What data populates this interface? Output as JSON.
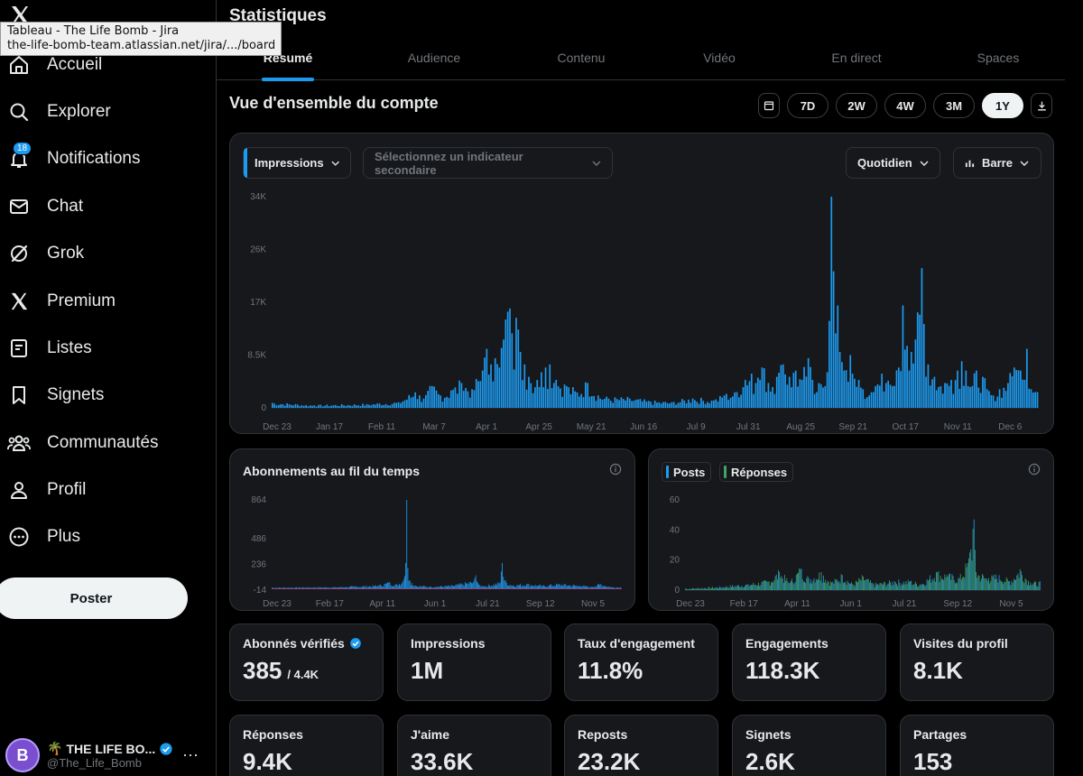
{
  "tooltip": {
    "line1": "Tableau - The Life Bomb - Jira",
    "line2": "the-life-bomb-team.atlassian.net/jira/.../board..."
  },
  "sidebar": {
    "items": [
      {
        "label": "Accueil",
        "icon": "home-icon"
      },
      {
        "label": "Explorer",
        "icon": "search-icon"
      },
      {
        "label": "Notifications",
        "icon": "bell-icon",
        "badge": "18"
      },
      {
        "label": "Chat",
        "icon": "mail-icon"
      },
      {
        "label": "Grok",
        "icon": "grok-icon"
      },
      {
        "label": "Premium",
        "icon": "x-icon"
      },
      {
        "label": "Listes",
        "icon": "list-icon"
      },
      {
        "label": "Signets",
        "icon": "bookmark-icon"
      },
      {
        "label": "Communautés",
        "icon": "people-icon"
      },
      {
        "label": "Profil",
        "icon": "person-icon"
      },
      {
        "label": "Plus",
        "icon": "more-circle-icon"
      }
    ],
    "post_label": "Poster",
    "profile": {
      "emoji": "🌴",
      "name": "THE LIFE BO...",
      "handle": "@The_Life_Bomb",
      "avatar_text": "B"
    }
  },
  "main": {
    "title": "Statistiques",
    "tabs": [
      "Résumé",
      "Audience",
      "Contenu",
      "Vidéo",
      "En direct",
      "Spaces"
    ],
    "active_tab": "Résumé",
    "section_title": "Vue d'ensemble du compte",
    "ranges": [
      "7D",
      "2W",
      "4W",
      "3M",
      "1Y"
    ],
    "selected_range": "1Y",
    "controls": {
      "primary": "Impressions",
      "secondary_placeholder": "Sélectionnez un indicateur secondaire",
      "granularity": "Quotidien",
      "chart_type": "Barre"
    },
    "follows_title": "Abonnements au fil du temps",
    "posts_legend": "Posts",
    "replies_legend": "Réponses"
  },
  "colors": {
    "accent": "#1d9bf0",
    "green": "#3fa36b",
    "red": "#e0245e"
  },
  "stats": [
    {
      "label": "Abonnés vérifiés",
      "value": "385",
      "sub": "/ 4.4K",
      "verified": true
    },
    {
      "label": "Impressions",
      "value": "1M"
    },
    {
      "label": "Taux d'engagement",
      "value": "11.8%"
    },
    {
      "label": "Engagements",
      "value": "118.3K"
    },
    {
      "label": "Visites du profil",
      "value": "8.1K"
    },
    {
      "label": "Réponses",
      "value": "9.4K"
    },
    {
      "label": "J'aime",
      "value": "33.6K"
    },
    {
      "label": "Reposts",
      "value": "23.2K"
    },
    {
      "label": "Signets",
      "value": "2.6K"
    },
    {
      "label": "Partages",
      "value": "153"
    }
  ],
  "chart_data": [
    {
      "type": "bar",
      "name": "impressions",
      "yticks": [
        "34K",
        "26K",
        "17K",
        "8.5K",
        "0"
      ],
      "ytick_values": [
        34000,
        25500,
        17000,
        8500,
        0
      ],
      "xticks": [
        "Dec 23",
        "Jan 17",
        "Feb 11",
        "Mar 7",
        "Apr 1",
        "Apr 25",
        "May 21",
        "Jun 16",
        "Jul 9",
        "Jul 31",
        "Aug 25",
        "Sep 21",
        "Oct 17",
        "Nov 11",
        "Dec 6"
      ],
      "ylim": [
        0,
        34000
      ],
      "peaks": [
        {
          "i": 0,
          "v": 800
        },
        {
          "i": 20,
          "v": 400
        },
        {
          "i": 45,
          "v": 600
        },
        {
          "i": 60,
          "v": 900
        },
        {
          "i": 68,
          "v": 2500
        },
        {
          "i": 72,
          "v": 1500
        },
        {
          "i": 76,
          "v": 3500
        },
        {
          "i": 80,
          "v": 2000
        },
        {
          "i": 85,
          "v": 2800
        },
        {
          "i": 90,
          "v": 4000
        },
        {
          "i": 95,
          "v": 3000
        },
        {
          "i": 100,
          "v": 6000
        },
        {
          "i": 102,
          "v": 9500
        },
        {
          "i": 104,
          "v": 7000
        },
        {
          "i": 106,
          "v": 8000
        },
        {
          "i": 108,
          "v": 6500
        },
        {
          "i": 110,
          "v": 11000
        },
        {
          "i": 112,
          "v": 15500
        },
        {
          "i": 113,
          "v": 16000
        },
        {
          "i": 114,
          "v": 12000
        },
        {
          "i": 116,
          "v": 14500
        },
        {
          "i": 118,
          "v": 9000
        },
        {
          "i": 120,
          "v": 7000
        },
        {
          "i": 122,
          "v": 5000
        },
        {
          "i": 126,
          "v": 4500
        },
        {
          "i": 130,
          "v": 6500
        },
        {
          "i": 132,
          "v": 7000
        },
        {
          "i": 135,
          "v": 4500
        },
        {
          "i": 140,
          "v": 3500
        },
        {
          "i": 145,
          "v": 2500
        },
        {
          "i": 150,
          "v": 4000
        },
        {
          "i": 155,
          "v": 2000
        },
        {
          "i": 160,
          "v": 1500
        },
        {
          "i": 170,
          "v": 1500
        },
        {
          "i": 180,
          "v": 1000
        },
        {
          "i": 190,
          "v": 900
        },
        {
          "i": 200,
          "v": 1500
        },
        {
          "i": 210,
          "v": 1200
        },
        {
          "i": 215,
          "v": 2000
        },
        {
          "i": 220,
          "v": 2500
        },
        {
          "i": 225,
          "v": 4500
        },
        {
          "i": 228,
          "v": 5500
        },
        {
          "i": 230,
          "v": 4000
        },
        {
          "i": 233,
          "v": 6500
        },
        {
          "i": 236,
          "v": 4000
        },
        {
          "i": 240,
          "v": 5000
        },
        {
          "i": 243,
          "v": 7000
        },
        {
          "i": 246,
          "v": 5000
        },
        {
          "i": 249,
          "v": 6000
        },
        {
          "i": 252,
          "v": 4500
        },
        {
          "i": 255,
          "v": 8000
        },
        {
          "i": 257,
          "v": 4500
        },
        {
          "i": 260,
          "v": 4000
        },
        {
          "i": 263,
          "v": 3500
        },
        {
          "i": 265,
          "v": 14000
        },
        {
          "i": 266,
          "v": 34000
        },
        {
          "i": 267,
          "v": 22000
        },
        {
          "i": 268,
          "v": 12000
        },
        {
          "i": 269,
          "v": 16500
        },
        {
          "i": 270,
          "v": 9000
        },
        {
          "i": 272,
          "v": 6000
        },
        {
          "i": 275,
          "v": 8500
        },
        {
          "i": 276,
          "v": 5500
        },
        {
          "i": 279,
          "v": 4500
        },
        {
          "i": 281,
          "v": 3000
        },
        {
          "i": 284,
          "v": 2000
        },
        {
          "i": 287,
          "v": 3500
        },
        {
          "i": 290,
          "v": 5500
        },
        {
          "i": 292,
          "v": 4000
        },
        {
          "i": 295,
          "v": 3500
        },
        {
          "i": 298,
          "v": 6500
        },
        {
          "i": 300,
          "v": 16500
        },
        {
          "i": 302,
          "v": 10000
        },
        {
          "i": 304,
          "v": 9000
        },
        {
          "i": 306,
          "v": 11000
        },
        {
          "i": 308,
          "v": 15000
        },
        {
          "i": 309,
          "v": 22500
        },
        {
          "i": 310,
          "v": 13500
        },
        {
          "i": 312,
          "v": 7000
        },
        {
          "i": 315,
          "v": 5000
        },
        {
          "i": 318,
          "v": 3500
        },
        {
          "i": 320,
          "v": 4000
        },
        {
          "i": 323,
          "v": 4500
        },
        {
          "i": 326,
          "v": 6000
        },
        {
          "i": 328,
          "v": 7500
        },
        {
          "i": 330,
          "v": 6000
        },
        {
          "i": 333,
          "v": 3500
        },
        {
          "i": 335,
          "v": 6000
        },
        {
          "i": 338,
          "v": 5000
        },
        {
          "i": 340,
          "v": 3000
        },
        {
          "i": 343,
          "v": 2000
        },
        {
          "i": 346,
          "v": 3000
        },
        {
          "i": 350,
          "v": 4000
        },
        {
          "i": 353,
          "v": 6500
        },
        {
          "i": 356,
          "v": 6000
        },
        {
          "i": 359,
          "v": 9500
        },
        {
          "i": 361,
          "v": 3000
        }
      ]
    },
    {
      "type": "bar",
      "name": "follows",
      "yticks": [
        "864",
        "486",
        "236",
        "-14"
      ],
      "ytick_values": [
        864,
        486,
        236,
        -14
      ],
      "xticks": [
        "Dec 23",
        "Feb 17",
        "Apr 11",
        "Jun 1",
        "Jul 21",
        "Sep 12",
        "Nov 5"
      ],
      "ylim": [
        -14,
        864
      ],
      "peaks": [
        {
          "i": 0,
          "v": 10
        },
        {
          "i": 60,
          "v": 15
        },
        {
          "i": 100,
          "v": 30
        },
        {
          "i": 110,
          "v": 60
        },
        {
          "i": 118,
          "v": 40
        },
        {
          "i": 124,
          "v": 90
        },
        {
          "i": 126,
          "v": 250
        },
        {
          "i": 127,
          "v": 864
        },
        {
          "i": 128,
          "v": 200
        },
        {
          "i": 130,
          "v": 80
        },
        {
          "i": 135,
          "v": 30
        },
        {
          "i": 150,
          "v": 20
        },
        {
          "i": 170,
          "v": 30
        },
        {
          "i": 190,
          "v": 70
        },
        {
          "i": 192,
          "v": 130
        },
        {
          "i": 195,
          "v": 40
        },
        {
          "i": 200,
          "v": 25
        },
        {
          "i": 215,
          "v": 60
        },
        {
          "i": 217,
          "v": 250
        },
        {
          "i": 219,
          "v": 80
        },
        {
          "i": 225,
          "v": 35
        },
        {
          "i": 240,
          "v": 45
        },
        {
          "i": 255,
          "v": 30
        },
        {
          "i": 270,
          "v": 45
        },
        {
          "i": 290,
          "v": 30
        },
        {
          "i": 300,
          "v": 20
        },
        {
          "i": 310,
          "v": 45
        },
        {
          "i": 320,
          "v": 15
        }
      ]
    },
    {
      "type": "bar",
      "name": "posts-replies",
      "series": [
        {
          "name": "Posts"
        },
        {
          "name": "Réponses"
        }
      ],
      "yticks": [
        "60",
        "40",
        "20",
        "0"
      ],
      "ytick_values": [
        60,
        40,
        20,
        0
      ],
      "xticks": [
        "Dec 23",
        "Feb 17",
        "Apr 11",
        "Jun 1",
        "Jul 21",
        "Sep 12",
        "Nov 5"
      ],
      "ylim": [
        0,
        60
      ],
      "peaks": [
        {
          "i": 0,
          "v": 1
        },
        {
          "i": 30,
          "v": 2
        },
        {
          "i": 60,
          "v": 4
        },
        {
          "i": 80,
          "v": 6
        },
        {
          "i": 90,
          "v": 12
        },
        {
          "i": 100,
          "v": 5
        },
        {
          "i": 110,
          "v": 14
        },
        {
          "i": 118,
          "v": 8
        },
        {
          "i": 130,
          "v": 12
        },
        {
          "i": 140,
          "v": 5
        },
        {
          "i": 150,
          "v": 10
        },
        {
          "i": 160,
          "v": 4
        },
        {
          "i": 170,
          "v": 9
        },
        {
          "i": 180,
          "v": 4
        },
        {
          "i": 200,
          "v": 6
        },
        {
          "i": 215,
          "v": 6
        },
        {
          "i": 225,
          "v": 4
        },
        {
          "i": 240,
          "v": 12
        },
        {
          "i": 250,
          "v": 10
        },
        {
          "i": 262,
          "v": 8
        },
        {
          "i": 270,
          "v": 18
        },
        {
          "i": 272,
          "v": 25
        },
        {
          "i": 276,
          "v": 47
        },
        {
          "i": 278,
          "v": 12
        },
        {
          "i": 290,
          "v": 8
        },
        {
          "i": 300,
          "v": 10
        },
        {
          "i": 310,
          "v": 6
        },
        {
          "i": 320,
          "v": 14
        },
        {
          "i": 330,
          "v": 5
        }
      ]
    }
  ]
}
